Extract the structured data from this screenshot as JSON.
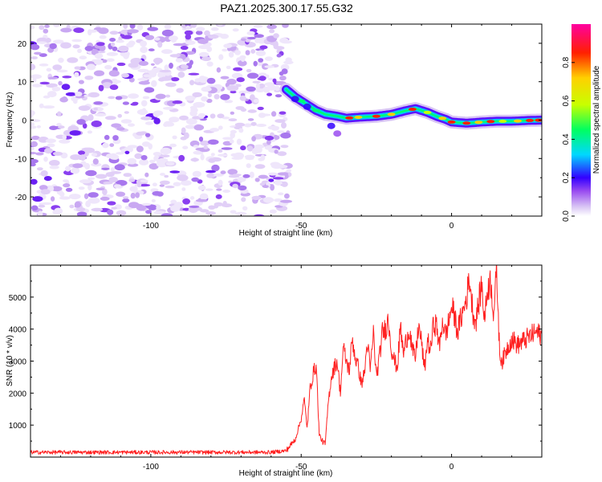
{
  "figure_title": "PAZ1.2025.300.17.55.G32",
  "chart_data": [
    {
      "type": "heatmap",
      "title": "PAZ1.2025.300.17.55.G32",
      "xlabel": "Height of straight line (km)",
      "ylabel": "Frequency (Hz)",
      "xlim": [
        -140,
        30
      ],
      "ylim": [
        -25,
        25
      ],
      "xticks": [
        -100,
        -50,
        0
      ],
      "xtick_labels": [
        "-100",
        "-50",
        "0"
      ],
      "yticks": [
        -20,
        -10,
        0,
        10,
        20
      ],
      "ytick_labels": [
        "-20",
        "-10",
        "0",
        "10",
        "20"
      ],
      "noise_region_x": [
        -140,
        -55
      ],
      "ridge": {
        "x": [
          -55,
          -52,
          -48,
          -45,
          -42,
          -38,
          -35,
          -30,
          -25,
          -20,
          -15,
          -12,
          -8,
          -5,
          -2,
          0,
          5,
          10,
          15,
          20,
          25,
          30
        ],
        "y": [
          8,
          6,
          4,
          2.5,
          1.5,
          1,
          0.5,
          0.8,
          1,
          1.5,
          2.5,
          3,
          2,
          1,
          0.2,
          -0.5,
          -0.8,
          -0.5,
          -0.3,
          -0.3,
          -0.1,
          0
        ]
      },
      "colorbar": {
        "label": "Normalized spectral amplitude",
        "range": [
          0.0,
          1.0
        ],
        "ticks": [
          0.0,
          0.2,
          0.4,
          0.6,
          0.8
        ],
        "tick_labels": [
          "0.0",
          "0.2",
          "0.4",
          "0.6",
          "0.8"
        ],
        "colors": [
          "#ffffff",
          "#d8c4f4",
          "#9a4cf0",
          "#3300ff",
          "#00d8ff",
          "#00ff60",
          "#c8ff00",
          "#ffd000",
          "#ff2000",
          "#ff00a0"
        ]
      }
    },
    {
      "type": "line",
      "title": "",
      "xlabel": "Height of straight line (km)",
      "ylabel": "SNR (10 * v/v)",
      "xlim": [
        -140,
        30
      ],
      "ylim": [
        0,
        6000
      ],
      "xticks": [
        -100,
        -50,
        0
      ],
      "xtick_labels": [
        "-100",
        "-50",
        "0"
      ],
      "yticks": [
        1000,
        2000,
        3000,
        4000,
        5000
      ],
      "ytick_labels": [
        "1000",
        "2000",
        "3000",
        "4000",
        "5000"
      ],
      "series": [
        {
          "name": "SNR",
          "color": "#ff2020",
          "x": [
            -140,
            -60,
            -55,
            -52,
            -50,
            -49,
            -48,
            -47,
            -46,
            -45,
            -44,
            -43,
            -42,
            -41,
            -40,
            -39,
            -38,
            -37,
            -36,
            -35,
            -34,
            -33,
            -32,
            -31,
            -30,
            -29,
            -28,
            -27,
            -26,
            -25,
            -24,
            -23,
            -22,
            -21,
            -20,
            -19,
            -18,
            -17,
            -16,
            -15,
            -14,
            -13,
            -12,
            -11,
            -10,
            -9,
            -8,
            -7,
            -6,
            -5,
            -4,
            -3,
            -2,
            -1,
            0,
            1,
            2,
            3,
            4,
            5,
            6,
            7,
            8,
            9,
            10,
            11,
            12,
            13,
            14,
            15,
            16,
            17,
            18,
            20,
            22,
            25,
            28,
            30
          ],
          "y": [
            150,
            150,
            200,
            550,
            1200,
            1800,
            900,
            2200,
            2600,
            2900,
            700,
            500,
            400,
            1700,
            2500,
            2800,
            3000,
            2000,
            3400,
            3000,
            2700,
            3700,
            3100,
            2800,
            2300,
            2600,
            3600,
            2700,
            3900,
            2500,
            3100,
            3900,
            4000,
            4300,
            3400,
            3000,
            2800,
            4100,
            3200,
            3700,
            4000,
            3300,
            3100,
            4100,
            3600,
            2700,
            3700,
            3300,
            4200,
            4100,
            3400,
            4300,
            3800,
            4200,
            4700,
            4400,
            3900,
            4300,
            4600,
            5000,
            5600,
            4600,
            4200,
            4800,
            5400,
            4300,
            5300,
            5500,
            4500,
            5800,
            3200,
            3000,
            3300,
            3700,
            3500,
            3700,
            3900,
            3800
          ]
        }
      ]
    }
  ]
}
